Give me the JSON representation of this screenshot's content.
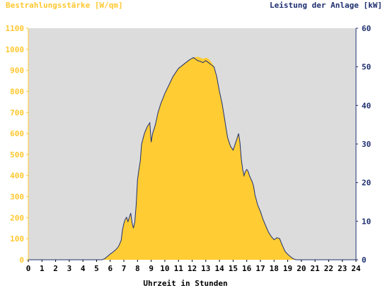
{
  "chart_data": {
    "type": "area",
    "title_left": "Bestrahlungsstärke [W/qm]",
    "title_right": "Leistung der Anlage [kW]",
    "xlabel": "Uhrzeit in Stunden",
    "xlim": [
      0,
      24
    ],
    "ylim_left": [
      0,
      1100
    ],
    "ylim_right": [
      0,
      60
    ],
    "grid": false,
    "x_ticks": [
      "0",
      "1",
      "2",
      "3",
      "4",
      "5",
      "6",
      "7",
      "8",
      "9",
      "10",
      "11",
      "12",
      "13",
      "14",
      "15",
      "16",
      "17",
      "18",
      "19",
      "20",
      "21",
      "22",
      "23",
      "24"
    ],
    "y_left_ticks": [
      "0",
      "100",
      "200",
      "300",
      "400",
      "500",
      "600",
      "700",
      "800",
      "900",
      "1000",
      "1100"
    ],
    "y_right_ticks": [
      "0",
      "10",
      "20",
      "30",
      "40",
      "50",
      "60"
    ],
    "colors": {
      "plot_bg": "#dcdcdc",
      "irradiance_fill": "#ffcc33",
      "left_axis_text": "#ffc830",
      "power_line": "#1f2f6f",
      "right_axis_text": "#1f2f6f"
    },
    "series": [
      {
        "axis": "left",
        "style": "filled-area",
        "x": [
          0,
          5.4,
          5.6,
          5.8,
          6.0,
          6.2,
          6.4,
          6.6,
          6.8,
          6.9,
          7.0,
          7.1,
          7.2,
          7.3,
          7.4,
          7.5,
          7.6,
          7.7,
          7.8,
          7.9,
          8.0,
          8.1,
          8.2,
          8.3,
          8.5,
          8.7,
          8.9,
          9.0,
          9.1,
          9.2,
          9.3,
          9.5,
          9.7,
          10.0,
          10.3,
          10.6,
          11.0,
          11.4,
          11.8,
          12.1,
          12.4,
          12.6,
          12.8,
          13.0,
          13.2,
          13.4,
          13.6,
          13.8,
          14.0,
          14.2,
          14.4,
          14.5,
          14.6,
          14.8,
          15.0,
          15.2,
          15.4,
          15.5,
          15.6,
          15.7,
          15.8,
          15.9,
          16.0,
          16.1,
          16.2,
          16.4,
          16.5,
          16.6,
          16.8,
          17.0,
          17.2,
          17.4,
          17.6,
          17.8,
          18.0,
          18.2,
          18.4,
          18.6,
          18.8,
          19.0,
          19.2,
          19.4,
          19.6,
          19.8,
          20.0,
          24
        ],
        "y": [
          0,
          0,
          5,
          15,
          25,
          35,
          45,
          60,
          90,
          140,
          170,
          190,
          200,
          180,
          200,
          220,
          175,
          150,
          180,
          260,
          380,
          430,
          470,
          550,
          600,
          630,
          650,
          560,
          600,
          620,
          640,
          700,
          740,
          790,
          830,
          870,
          910,
          930,
          950,
          960,
          965,
          960,
          955,
          960,
          955,
          940,
          920,
          870,
          800,
          740,
          660,
          620,
          580,
          540,
          520,
          560,
          600,
          560,
          480,
          430,
          400,
          420,
          430,
          420,
          400,
          370,
          350,
          310,
          260,
          230,
          190,
          160,
          130,
          110,
          95,
          105,
          100,
          70,
          40,
          25,
          15,
          5,
          0,
          0,
          0,
          0
        ]
      },
      {
        "axis": "right",
        "style": "line",
        "x": [
          0,
          5.4,
          5.6,
          5.8,
          6.0,
          6.2,
          6.4,
          6.6,
          6.8,
          6.9,
          7.0,
          7.1,
          7.2,
          7.3,
          7.4,
          7.5,
          7.6,
          7.7,
          7.8,
          7.9,
          8.0,
          8.1,
          8.2,
          8.3,
          8.5,
          8.7,
          8.9,
          9.0,
          9.1,
          9.2,
          9.3,
          9.5,
          9.7,
          10.0,
          10.3,
          10.6,
          11.0,
          11.4,
          11.8,
          12.1,
          12.4,
          12.6,
          12.8,
          13.0,
          13.2,
          13.4,
          13.6,
          13.8,
          14.0,
          14.2,
          14.4,
          14.5,
          14.6,
          14.8,
          15.0,
          15.2,
          15.4,
          15.5,
          15.6,
          15.7,
          15.8,
          15.9,
          16.0,
          16.1,
          16.2,
          16.4,
          16.5,
          16.6,
          16.8,
          17.0,
          17.2,
          17.4,
          17.6,
          17.8,
          18.0,
          18.2,
          18.4,
          18.6,
          18.8,
          19.0,
          19.2,
          19.4,
          19.6,
          19.8,
          20.0,
          24
        ],
        "y": [
          0,
          0,
          0.3,
          0.9,
          1.5,
          2.0,
          2.6,
          3.4,
          5.0,
          7.8,
          9.4,
          10.5,
          11.0,
          9.9,
          11.0,
          12.1,
          9.6,
          8.2,
          9.8,
          14.2,
          20.7,
          23.4,
          25.6,
          30.0,
          32.7,
          34.4,
          35.5,
          30.5,
          32.7,
          33.8,
          34.9,
          38.2,
          40.4,
          43.1,
          45.3,
          47.5,
          49.6,
          50.7,
          51.8,
          52.4,
          51.6,
          51.4,
          51.1,
          51.6,
          51.1,
          50.5,
          50.0,
          47.5,
          43.6,
          40.4,
          36.0,
          33.8,
          31.6,
          29.5,
          28.4,
          30.5,
          32.7,
          30.5,
          26.2,
          23.4,
          21.8,
          22.9,
          23.4,
          22.9,
          21.8,
          20.2,
          19.1,
          16.9,
          14.2,
          12.5,
          10.4,
          8.7,
          7.1,
          6.0,
          5.2,
          5.7,
          5.5,
          3.8,
          2.2,
          1.4,
          0.8,
          0.3,
          0,
          0,
          0,
          0
        ]
      }
    ]
  }
}
